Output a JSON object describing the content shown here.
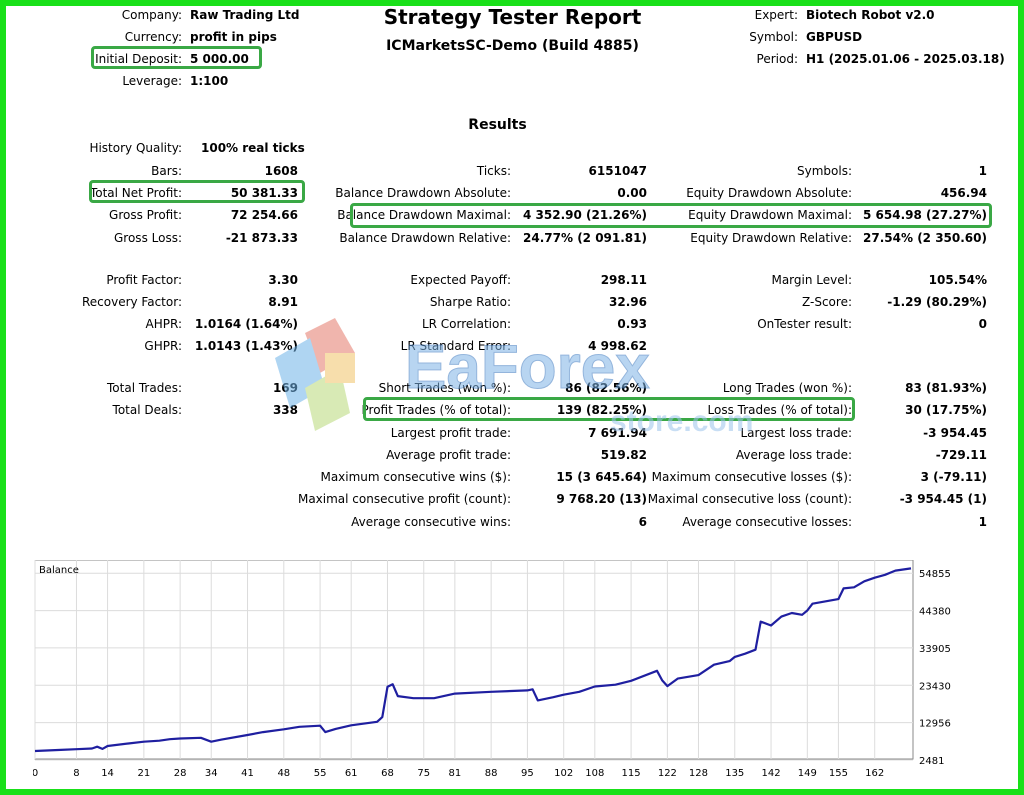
{
  "header": {
    "title": "Strategy Tester Report",
    "subtitle": "ICMarketsSC-Demo (Build 4885)",
    "left": [
      {
        "label": "Company:",
        "value": "Raw Trading Ltd"
      },
      {
        "label": "Currency:",
        "value": "profit in pips"
      },
      {
        "label": "Initial Deposit:",
        "value": "5 000.00"
      },
      {
        "label": "Leverage:",
        "value": "1:100"
      }
    ],
    "right": [
      {
        "label": "Expert:",
        "value": "Biotech Robot v2.0"
      },
      {
        "label": "Symbol:",
        "value": "GBPUSD"
      },
      {
        "label": "Period:",
        "value": "H1 (2025.01.06 - 2025.03.18)"
      }
    ]
  },
  "results": {
    "heading": "Results",
    "history_quality": {
      "label": "History Quality:",
      "value": "100% real ticks"
    },
    "col1": [
      {
        "label": "Bars:",
        "value": "1608"
      },
      {
        "label": "Total Net Profit:",
        "value": "50 381.33"
      },
      {
        "label": "Gross Profit:",
        "value": "72 254.66"
      },
      {
        "label": "Gross Loss:",
        "value": "-21 873.33"
      },
      {
        "label": "Profit Factor:",
        "value": "3.30"
      },
      {
        "label": "Recovery Factor:",
        "value": "8.91"
      },
      {
        "label": "AHPR:",
        "value": "1.0164 (1.64%)"
      },
      {
        "label": "GHPR:",
        "value": "1.0143 (1.43%)"
      },
      {
        "label": "Total Trades:",
        "value": "169"
      },
      {
        "label": "Total Deals:",
        "value": "338"
      }
    ],
    "col2": [
      {
        "label": "Ticks:",
        "value": "6151047"
      },
      {
        "label": "Balance Drawdown Absolute:",
        "value": "0.00"
      },
      {
        "label": "Balance Drawdown Maximal:",
        "value": "4 352.90 (21.26%)"
      },
      {
        "label": "Balance Drawdown Relative:",
        "value": "24.77% (2 091.81)"
      },
      {
        "label": "Expected Payoff:",
        "value": "298.11"
      },
      {
        "label": "Sharpe Ratio:",
        "value": "32.96"
      },
      {
        "label": "LR Correlation:",
        "value": "0.93"
      },
      {
        "label": "LR Standard Error:",
        "value": "4 998.62"
      },
      {
        "label": "Short Trades (won %):",
        "value": "86 (82.56%)"
      },
      {
        "label": "Profit Trades (% of total):",
        "value": "139 (82.25%)"
      },
      {
        "label": "Largest profit trade:",
        "value": "7 691.94"
      },
      {
        "label": "Average profit trade:",
        "value": "519.82"
      },
      {
        "label": "Maximum consecutive wins ($):",
        "value": "15 (3 645.64)"
      },
      {
        "label": "Maximal consecutive profit (count):",
        "value": "9 768.20 (13)"
      },
      {
        "label": "Average consecutive wins:",
        "value": "6"
      }
    ],
    "col3": [
      {
        "label": "Symbols:",
        "value": "1"
      },
      {
        "label": "Equity Drawdown Absolute:",
        "value": "456.94"
      },
      {
        "label": "Equity Drawdown Maximal:",
        "value": "5 654.98 (27.27%)"
      },
      {
        "label": "Equity Drawdown Relative:",
        "value": "27.54% (2 350.60)"
      },
      {
        "label": "Margin Level:",
        "value": "105.54%"
      },
      {
        "label": "Z-Score:",
        "value": "-1.29 (80.29%)"
      },
      {
        "label": "OnTester result:",
        "value": "0"
      },
      {
        "label": "Long Trades (won %):",
        "value": "83 (81.93%)"
      },
      {
        "label": "Loss Trades (% of total):",
        "value": "30 (17.75%)"
      },
      {
        "label": "Largest loss trade:",
        "value": "-3 954.45"
      },
      {
        "label": "Average loss trade:",
        "value": "-729.11"
      },
      {
        "label": "Maximum consecutive losses ($):",
        "value": "3 (-79.11)"
      },
      {
        "label": "Maximal consecutive loss (count):",
        "value": "-3 954.45 (1)"
      },
      {
        "label": "Average consecutive losses:",
        "value": "1"
      }
    ]
  },
  "watermark": {
    "text": "EaForex",
    "subtext": "store.com"
  },
  "colors": {
    "frame": "#19e019",
    "highlight": "#3aa845",
    "balance_line": "#1f1fa0",
    "grid": "#dcdcdc"
  },
  "chart_data": {
    "type": "line",
    "title": "Balance",
    "x_ticks": [
      0,
      8,
      14,
      21,
      28,
      34,
      41,
      48,
      55,
      61,
      68,
      75,
      81,
      88,
      95,
      102,
      108,
      115,
      122,
      128,
      135,
      142,
      149,
      155,
      162
    ],
    "y_ticks": [
      2481,
      12956,
      23430,
      33905,
      44380,
      54855
    ],
    "xlim": [
      0,
      169
    ],
    "ylim": [
      2481,
      58000
    ],
    "grid": true,
    "series": [
      {
        "x": [
          0,
          5,
          8,
          11,
          12,
          13,
          14,
          18,
          21,
          24,
          26,
          28,
          32,
          34,
          36,
          41,
          44,
          48,
          51,
          55,
          56,
          58,
          61,
          66,
          67,
          68,
          69,
          70,
          73,
          77,
          81,
          88,
          95,
          96,
          97,
          100,
          102,
          105,
          108,
          112,
          115,
          120,
          121,
          122,
          124,
          128,
          131,
          134,
          135,
          137,
          139,
          140,
          142,
          144,
          146,
          148,
          149,
          150,
          155,
          156,
          158,
          160,
          162,
          164,
          166,
          169
        ],
        "y": [
          5000,
          5300,
          5500,
          5700,
          6200,
          5600,
          6400,
          7100,
          7600,
          7900,
          8300,
          8500,
          8700,
          7600,
          8200,
          9500,
          10300,
          11100,
          11800,
          12100,
          10300,
          11200,
          12200,
          13200,
          14500,
          23000,
          23700,
          20400,
          19800,
          19800,
          21100,
          21600,
          22000,
          22300,
          19200,
          20100,
          20800,
          21600,
          23100,
          23600,
          24700,
          27500,
          24800,
          23200,
          25300,
          26300,
          29200,
          30200,
          31400,
          32300,
          33400,
          41300,
          40200,
          42700,
          43700,
          43200,
          44400,
          46300,
          47600,
          50600,
          50900,
          52600,
          53600,
          54400,
          55600,
          56200
        ]
      }
    ]
  }
}
